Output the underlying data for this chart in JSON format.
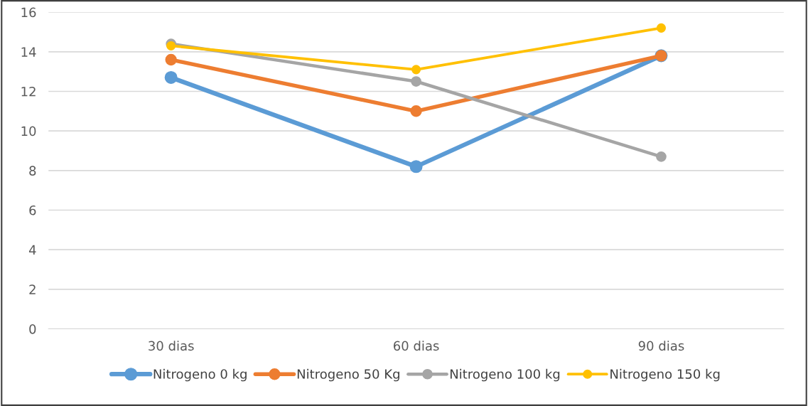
{
  "chart_data": {
    "type": "line",
    "categories": [
      "30 dias",
      "60 dias",
      "90 dias"
    ],
    "series": [
      {
        "name": "Nitrogeno 0 kg",
        "color": "#5b9bd5",
        "values": [
          12.7,
          8.2,
          13.8
        ]
      },
      {
        "name": "Nitrogeno 50 Kg",
        "color": "#ed7d31",
        "values": [
          13.6,
          11.0,
          13.8
        ]
      },
      {
        "name": "Nitrogeno 100 kg",
        "color": "#a5a5a5",
        "values": [
          14.4,
          12.5,
          8.7
        ]
      },
      {
        "name": "Nitrogeno 150 kg",
        "color": "#ffc000",
        "values": [
          14.3,
          13.1,
          15.2
        ]
      }
    ],
    "ylim": [
      0,
      16
    ],
    "yticks": [
      0,
      2,
      4,
      6,
      8,
      10,
      12,
      14,
      16
    ],
    "grid": "y",
    "legend": "bottom",
    "marker": "circle",
    "line_style": "solid"
  }
}
